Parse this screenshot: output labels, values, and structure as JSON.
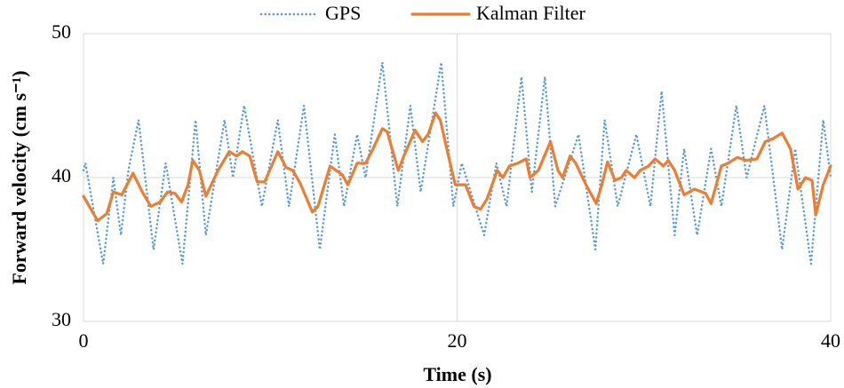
{
  "chart_data": {
    "type": "line",
    "xlabel": "Time (s)",
    "ylabel": "Forward velocity (cm s⁻¹)",
    "xlim": [
      0,
      40
    ],
    "xticks": [
      0,
      20,
      40
    ],
    "ylim": [
      30,
      50
    ],
    "yticks": [
      30,
      40,
      50
    ],
    "grid": true,
    "legend": "top",
    "series": [
      {
        "name": "GPS",
        "color": "#5b9bd5",
        "style": "dotted",
        "x": [
          0,
          0.1,
          1.05,
          1.6,
          2.0,
          2.4,
          2.95,
          3.75,
          4.4,
          5.3,
          6.0,
          6.55,
          7.55,
          8.0,
          8.6,
          9.55,
          10.4,
          11.0,
          11.8,
          12.65,
          13.45,
          13.95,
          14.65,
          15.1,
          16.0,
          16.8,
          17.5,
          18.05,
          19.15,
          19.8,
          20.25,
          21.45,
          22.1,
          22.65,
          23.45,
          24.0,
          24.7,
          25.25,
          26.5,
          27.4,
          27.9,
          28.6,
          29.6,
          30.35,
          30.95,
          31.65,
          32.15,
          32.85,
          33.6,
          34.15,
          34.95,
          35.5,
          36.45,
          37.4,
          38.1,
          38.95,
          39.6,
          40
        ],
        "values": [
          40.5,
          41,
          34,
          40,
          36,
          40.5,
          44,
          35,
          41,
          34,
          44,
          36,
          44,
          40,
          45,
          38,
          44,
          38,
          45,
          35,
          43,
          38,
          43,
          40,
          48,
          38,
          45,
          39,
          48,
          38,
          41,
          36,
          41,
          38,
          47,
          39,
          47,
          38,
          43,
          35,
          44,
          38,
          43,
          38,
          46,
          36,
          42,
          36,
          42,
          38,
          45,
          40,
          45,
          35,
          42,
          34,
          44,
          40
        ]
      },
      {
        "name": "Kalman Filter",
        "color": "#ed7d31",
        "style": "solid",
        "x": [
          0,
          0.75,
          1.25,
          1.6,
          2.05,
          2.65,
          3.15,
          3.6,
          4.1,
          4.5,
          4.9,
          5.25,
          5.6,
          5.85,
          6.2,
          6.55,
          7.2,
          7.8,
          8.2,
          8.5,
          8.9,
          9.3,
          9.7,
          10.4,
          10.85,
          11.2,
          11.6,
          12.25,
          12.55,
          13.2,
          13.85,
          14.15,
          14.65,
          15.1,
          15.5,
          16.0,
          16.25,
          16.85,
          17.15,
          17.75,
          18.15,
          18.45,
          18.85,
          19.1,
          19.45,
          19.9,
          20.45,
          20.9,
          21.25,
          21.6,
          22.15,
          22.45,
          22.8,
          23.25,
          23.7,
          23.9,
          24.35,
          25.0,
          25.4,
          25.65,
          26.05,
          26.35,
          26.9,
          27.45,
          27.75,
          28.05,
          28.45,
          28.8,
          29.05,
          29.5,
          29.8,
          30.25,
          30.6,
          31.05,
          31.3,
          31.65,
          32.15,
          32.7,
          33.3,
          33.6,
          34.15,
          34.5,
          35.0,
          35.5,
          36.05,
          36.5,
          36.9,
          37.4,
          37.85,
          38.25,
          38.65,
          39.0,
          39.2,
          39.6,
          40
        ],
        "values": [
          38.7,
          37,
          37.5,
          39,
          38.8,
          40.3,
          39,
          38,
          38.3,
          39,
          38.9,
          38.3,
          39.5,
          41.2,
          40.5,
          38.7,
          40.5,
          41.8,
          41.5,
          41.8,
          41.5,
          39.7,
          39.7,
          41.8,
          40.7,
          40.5,
          39.6,
          37.6,
          38,
          40.8,
          40.2,
          39.5,
          41,
          41,
          42,
          43.4,
          43.2,
          40.5,
          41.5,
          43.3,
          42.5,
          43,
          44.5,
          44,
          42,
          39.5,
          39.5,
          38,
          37.8,
          38.5,
          40.5,
          40,
          40.8,
          41,
          41.3,
          40,
          40.5,
          42.5,
          40.5,
          40,
          41.5,
          41,
          39.5,
          38.2,
          39.5,
          41.1,
          39.8,
          40,
          40.5,
          40,
          40.5,
          40.8,
          41.3,
          40.8,
          41.2,
          40.5,
          38.8,
          39.2,
          38.9,
          38.2,
          40.8,
          41,
          41.4,
          41.2,
          41.3,
          42.5,
          42.7,
          43.1,
          42,
          39.2,
          40,
          39.8,
          37.4,
          39.5,
          40.8
        ]
      }
    ]
  }
}
